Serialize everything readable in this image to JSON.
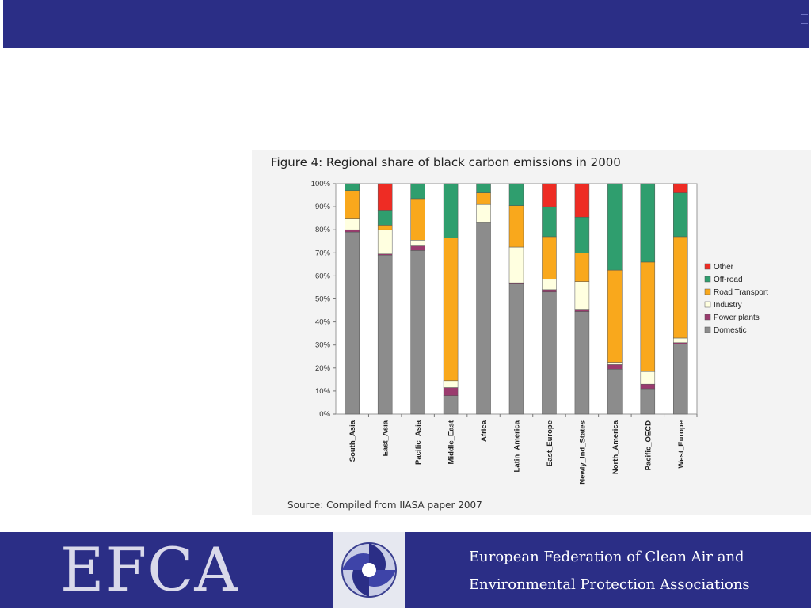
{
  "figure": {
    "title": "Figure 4: Regional share of black carbon emissions in 2000",
    "source": "Source: Compiled from IIASA paper 2007"
  },
  "footer": {
    "acronym": "EFCA",
    "org_line1": "European Federation of Clean Air and",
    "org_line2": "Environmental Protection Associations",
    "logo_icon": "efca-swirl-logo-icon"
  },
  "colors": {
    "band": "#2b2e86",
    "Domestic": "#8c8c8c",
    "Power plants": "#9a3b6e",
    "Industry": "#ffffe0",
    "Road Transport": "#f9a81c",
    "Off-road": "#2f9e6e",
    "Other": "#ee2c24"
  },
  "chart_data": {
    "type": "bar",
    "stacked": true,
    "title": "Figure 4: Regional share of black carbon emissions in 2000",
    "xlabel": "",
    "ylabel": "",
    "ylim": [
      0,
      100
    ],
    "yticks": [
      "0%",
      "10%",
      "20%",
      "30%",
      "40%",
      "50%",
      "60%",
      "70%",
      "80%",
      "90%",
      "100%"
    ],
    "legend_position": "right",
    "categories": [
      "South_Asia",
      "East_Asia",
      "Pacific_Asia",
      "Middle_East",
      "Africa",
      "Latin_America",
      "East_Europe",
      "Newly_Ind_States",
      "North_America",
      "Pacific_OECD",
      "West_Europe"
    ],
    "series": [
      {
        "name": "Domestic",
        "values": [
          79,
          69,
          71,
          8,
          83,
          56.5,
          53,
          44.5,
          19.5,
          11,
          30.5
        ]
      },
      {
        "name": "Power plants",
        "values": [
          1,
          0.5,
          2,
          3.5,
          0,
          0.5,
          1,
          1,
          2,
          2,
          0.5
        ]
      },
      {
        "name": "Industry",
        "values": [
          5,
          10.5,
          2.5,
          3,
          8,
          15.5,
          4.5,
          12,
          1,
          5.5,
          2
        ]
      },
      {
        "name": "Road Transport",
        "values": [
          12,
          2,
          18,
          62,
          5,
          18,
          18.5,
          12.5,
          40,
          47.5,
          44
        ]
      },
      {
        "name": "Off-road",
        "values": [
          3,
          6.5,
          6.5,
          23.5,
          4,
          9.5,
          13,
          15.5,
          37.5,
          34,
          19
        ]
      },
      {
        "name": "Other",
        "values": [
          0,
          11.5,
          0,
          0,
          0,
          0,
          10,
          14.5,
          0,
          0,
          4
        ]
      }
    ],
    "legend_order": [
      "Other",
      "Off-road",
      "Road Transport",
      "Industry",
      "Power plants",
      "Domestic"
    ]
  }
}
